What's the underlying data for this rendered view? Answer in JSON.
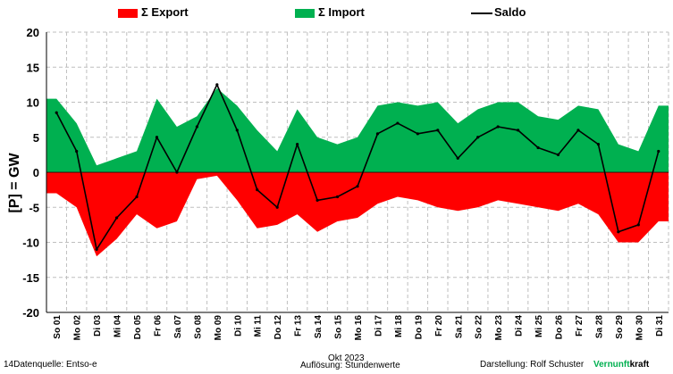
{
  "legend": {
    "export_label": "Σ Export",
    "import_label": "Σ Import",
    "saldo_label": "Saldo"
  },
  "colors": {
    "export": "#ff0000",
    "import": "#00b050",
    "saldo": "#000000",
    "grid": "#bfbfbf",
    "brand_green": "#00b050"
  },
  "footer": {
    "left_text": "14Datenquelle: Entso-e",
    "center_title": "Okt 2023",
    "center_text": "Auflösung: Stundenwerte",
    "right_text": "Darstellung:  Rolf Schuster",
    "brand_green": "Vernunft",
    "brand_black": "kraft"
  },
  "chart_data": {
    "type": "area",
    "title": "",
    "xlabel": "Okt 2023",
    "ylabel": "[P]  = GW",
    "ylim": [
      -20,
      20
    ],
    "yticks": [
      20,
      15,
      10,
      5,
      0,
      -5,
      -10,
      -15,
      -20
    ],
    "grid": true,
    "legend_position": "top",
    "categories": [
      "So 01",
      "Mo 02",
      "Di 03",
      "Mi 04",
      "Do 05",
      "Fr 06",
      "Sa 07",
      "So 08",
      "Mo 09",
      "Di 10",
      "Mi 11",
      "Do 12",
      "Fr 13",
      "Sa 14",
      "So 15",
      "Mo 16",
      "Di 17",
      "Mi 18",
      "Do 19",
      "Fr 20",
      "Sa 21",
      "So 22",
      "Mo 23",
      "Di 24",
      "Mi 25",
      "Do 26",
      "Fr 27",
      "Sa 28",
      "So 29",
      "Mo 30",
      "Di 31"
    ],
    "series": [
      {
        "name": "Σ Import",
        "values": [
          10.5,
          7.0,
          1.0,
          2.0,
          3.0,
          10.5,
          6.5,
          8.0,
          12.0,
          9.5,
          6.0,
          3.0,
          9.0,
          5.0,
          4.0,
          5.0,
          9.5,
          10.0,
          9.5,
          10.0,
          7.0,
          9.0,
          10.0,
          10.0,
          8.0,
          7.5,
          9.5,
          9.0,
          4.0,
          3.0,
          9.5
        ]
      },
      {
        "name": "Σ Export",
        "values": [
          -3.0,
          -5.0,
          -12.0,
          -9.5,
          -6.0,
          -8.0,
          -7.0,
          -1.0,
          -0.5,
          -4.0,
          -8.0,
          -7.5,
          -6.0,
          -8.5,
          -7.0,
          -6.5,
          -4.5,
          -3.5,
          -4.0,
          -5.0,
          -5.5,
          -5.0,
          -4.0,
          -4.5,
          -5.0,
          -5.5,
          -4.5,
          -6.0,
          -10.0,
          -10.0,
          -7.0
        ]
      },
      {
        "name": "Saldo",
        "values": [
          8.5,
          3.0,
          -11.0,
          -6.5,
          -3.5,
          5.0,
          0.0,
          6.5,
          12.5,
          6.0,
          -2.5,
          -5.0,
          4.0,
          -4.0,
          -3.5,
          -2.0,
          5.5,
          7.0,
          5.5,
          6.0,
          2.0,
          5.0,
          6.5,
          6.0,
          3.5,
          2.5,
          6.0,
          4.0,
          -8.5,
          -7.5,
          3.0
        ]
      }
    ]
  }
}
